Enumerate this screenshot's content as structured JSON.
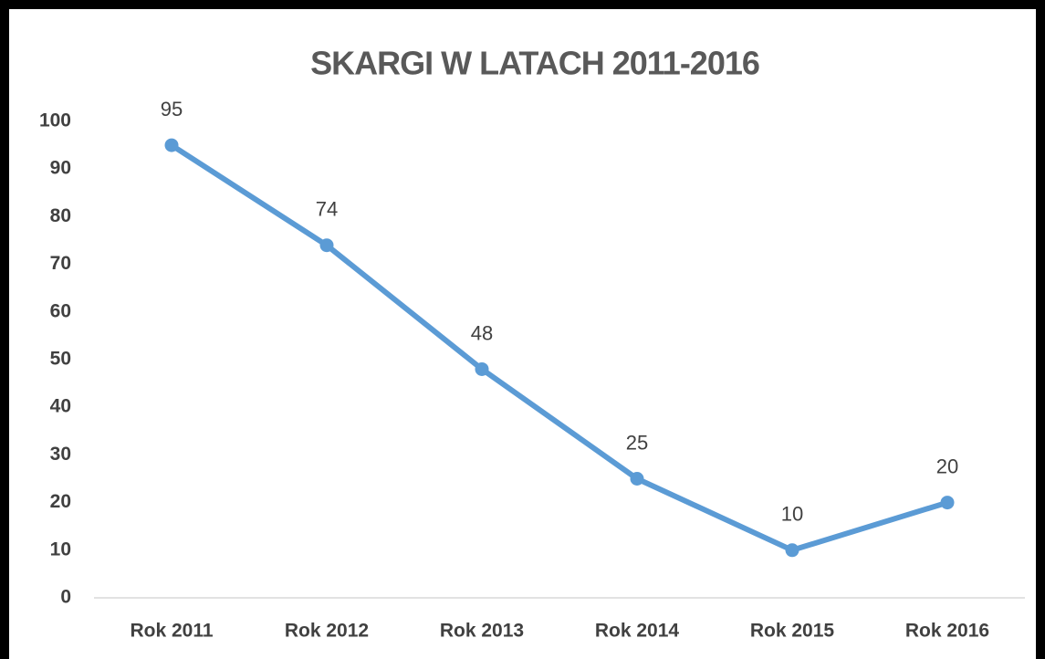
{
  "chart_data": {
    "type": "line",
    "title": "SKARGI W LATACH 2011-2016",
    "categories": [
      "Rok 2011",
      "Rok 2012",
      "Rok 2013",
      "Rok 2014",
      "Rok 2015",
      "Rok 2016"
    ],
    "series": [
      {
        "color": "#5b9bd5",
        "values": [
          95,
          74,
          48,
          25,
          10,
          20
        ]
      }
    ],
    "ylim": [
      0,
      100
    ],
    "yticks": [
      0,
      10,
      20,
      30,
      40,
      50,
      60,
      70,
      80,
      90,
      100
    ],
    "grid": false
  }
}
